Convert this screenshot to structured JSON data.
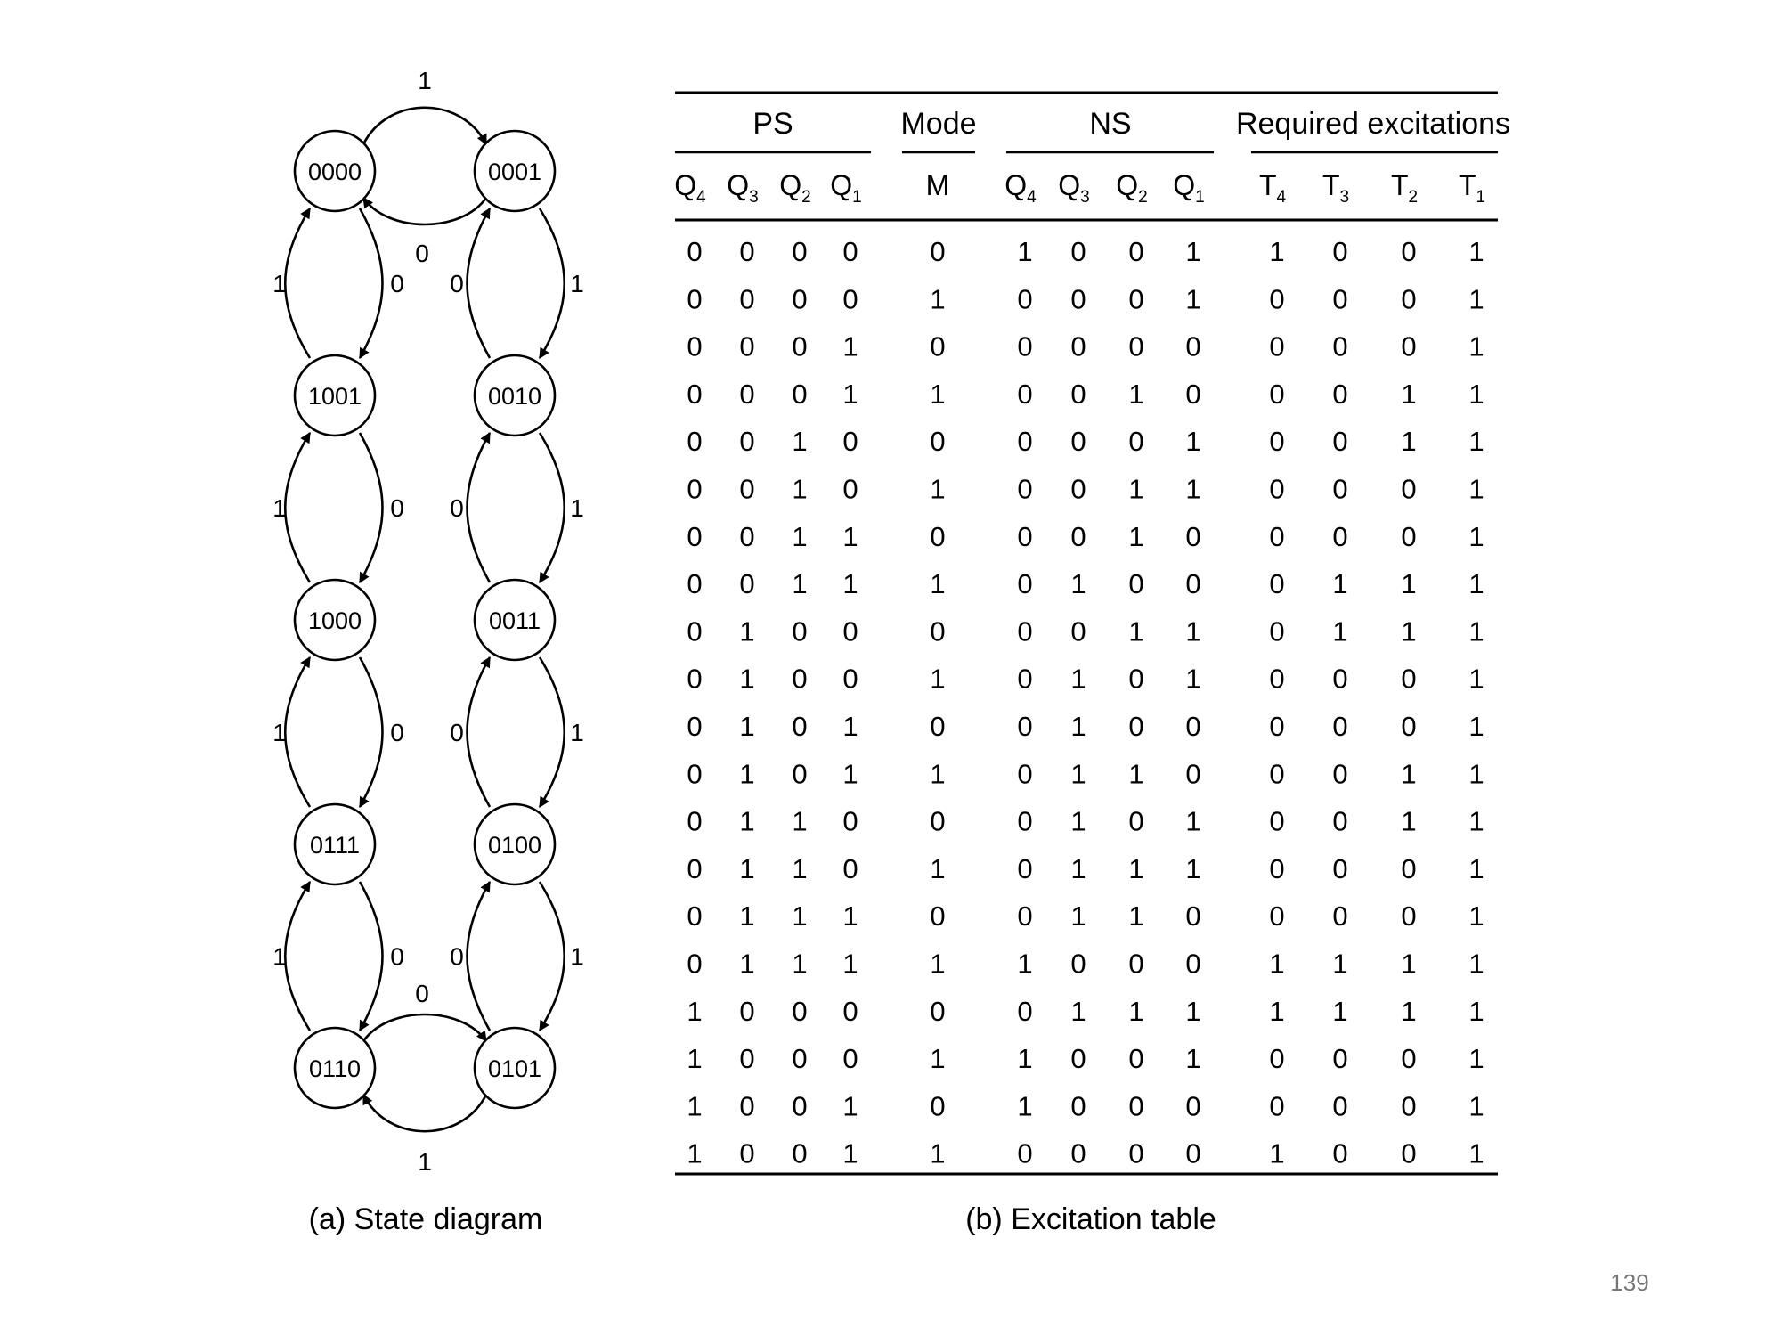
{
  "state_diagram": {
    "caption": "(a) State diagram",
    "states": [
      "0000",
      "0001",
      "1001",
      "0010",
      "1000",
      "0011",
      "0111",
      "0100",
      "0110",
      "0101"
    ],
    "transitions": [
      {
        "from": "0000",
        "to": "0001",
        "label": "1"
      },
      {
        "from": "0001",
        "to": "0000",
        "label": "0"
      },
      {
        "from": "0000",
        "to": "1001",
        "label": "0"
      },
      {
        "from": "1001",
        "to": "0000",
        "label": "1"
      },
      {
        "from": "0001",
        "to": "0010",
        "label": "1"
      },
      {
        "from": "0010",
        "to": "0001",
        "label": "0"
      },
      {
        "from": "1001",
        "to": "1000",
        "label": "0"
      },
      {
        "from": "1000",
        "to": "1001",
        "label": "1"
      },
      {
        "from": "0010",
        "to": "0011",
        "label": "1"
      },
      {
        "from": "0011",
        "to": "0010",
        "label": "0"
      },
      {
        "from": "1000",
        "to": "0111",
        "label": "0"
      },
      {
        "from": "0111",
        "to": "1000",
        "label": "1"
      },
      {
        "from": "0011",
        "to": "0100",
        "label": "1"
      },
      {
        "from": "0100",
        "to": "0011",
        "label": "0"
      },
      {
        "from": "0111",
        "to": "0110",
        "label": "0"
      },
      {
        "from": "0110",
        "to": "0111",
        "label": "1"
      },
      {
        "from": "0100",
        "to": "0101",
        "label": "1"
      },
      {
        "from": "0101",
        "to": "0100",
        "label": "0"
      },
      {
        "from": "0110",
        "to": "0101",
        "label": "0"
      },
      {
        "from": "0101",
        "to": "0110",
        "label": "1"
      }
    ]
  },
  "excitation_table": {
    "caption": "(b) Excitation table",
    "groups": [
      {
        "label": "PS",
        "columns": [
          {
            "base": "Q",
            "sub": "4"
          },
          {
            "base": "Q",
            "sub": "3"
          },
          {
            "base": "Q",
            "sub": "2"
          },
          {
            "base": "Q",
            "sub": "1"
          }
        ]
      },
      {
        "label": "Mode",
        "columns": [
          {
            "base": "M",
            "sub": ""
          }
        ]
      },
      {
        "label": "NS",
        "columns": [
          {
            "base": "Q",
            "sub": "4"
          },
          {
            "base": "Q",
            "sub": "3"
          },
          {
            "base": "Q",
            "sub": "2"
          },
          {
            "base": "Q",
            "sub": "1"
          }
        ]
      },
      {
        "label": "Required excitations",
        "columns": [
          {
            "base": "T",
            "sub": "4"
          },
          {
            "base": "T",
            "sub": "3"
          },
          {
            "base": "T",
            "sub": "2"
          },
          {
            "base": "T",
            "sub": "1"
          }
        ]
      }
    ],
    "rows": [
      [
        "0",
        "0",
        "0",
        "0",
        "0",
        "1",
        "0",
        "0",
        "1",
        "1",
        "0",
        "0",
        "1"
      ],
      [
        "0",
        "0",
        "0",
        "0",
        "1",
        "0",
        "0",
        "0",
        "1",
        "0",
        "0",
        "0",
        "1"
      ],
      [
        "0",
        "0",
        "0",
        "1",
        "0",
        "0",
        "0",
        "0",
        "0",
        "0",
        "0",
        "0",
        "1"
      ],
      [
        "0",
        "0",
        "0",
        "1",
        "1",
        "0",
        "0",
        "1",
        "0",
        "0",
        "0",
        "1",
        "1"
      ],
      [
        "0",
        "0",
        "1",
        "0",
        "0",
        "0",
        "0",
        "0",
        "1",
        "0",
        "0",
        "1",
        "1"
      ],
      [
        "0",
        "0",
        "1",
        "0",
        "1",
        "0",
        "0",
        "1",
        "1",
        "0",
        "0",
        "0",
        "1"
      ],
      [
        "0",
        "0",
        "1",
        "1",
        "0",
        "0",
        "0",
        "1",
        "0",
        "0",
        "0",
        "0",
        "1"
      ],
      [
        "0",
        "0",
        "1",
        "1",
        "1",
        "0",
        "1",
        "0",
        "0",
        "0",
        "1",
        "1",
        "1"
      ],
      [
        "0",
        "1",
        "0",
        "0",
        "0",
        "0",
        "0",
        "1",
        "1",
        "0",
        "1",
        "1",
        "1"
      ],
      [
        "0",
        "1",
        "0",
        "0",
        "1",
        "0",
        "1",
        "0",
        "1",
        "0",
        "0",
        "0",
        "1"
      ],
      [
        "0",
        "1",
        "0",
        "1",
        "0",
        "0",
        "1",
        "0",
        "0",
        "0",
        "0",
        "0",
        "1"
      ],
      [
        "0",
        "1",
        "0",
        "1",
        "1",
        "0",
        "1",
        "1",
        "0",
        "0",
        "0",
        "1",
        "1"
      ],
      [
        "0",
        "1",
        "1",
        "0",
        "0",
        "0",
        "1",
        "0",
        "1",
        "0",
        "0",
        "1",
        "1"
      ],
      [
        "0",
        "1",
        "1",
        "0",
        "1",
        "0",
        "1",
        "1",
        "1",
        "0",
        "0",
        "0",
        "1"
      ],
      [
        "0",
        "1",
        "1",
        "1",
        "0",
        "0",
        "1",
        "1",
        "0",
        "0",
        "0",
        "0",
        "1"
      ],
      [
        "0",
        "1",
        "1",
        "1",
        "1",
        "1",
        "0",
        "0",
        "0",
        "1",
        "1",
        "1",
        "1"
      ],
      [
        "1",
        "0",
        "0",
        "0",
        "0",
        "0",
        "1",
        "1",
        "1",
        "1",
        "1",
        "1",
        "1"
      ],
      [
        "1",
        "0",
        "0",
        "0",
        "1",
        "1",
        "0",
        "0",
        "1",
        "0",
        "0",
        "0",
        "1"
      ],
      [
        "1",
        "0",
        "0",
        "1",
        "0",
        "1",
        "0",
        "0",
        "0",
        "0",
        "0",
        "0",
        "1"
      ],
      [
        "1",
        "0",
        "0",
        "1",
        "1",
        "0",
        "0",
        "0",
        "0",
        "1",
        "0",
        "0",
        "1"
      ]
    ]
  },
  "page_number": "139"
}
